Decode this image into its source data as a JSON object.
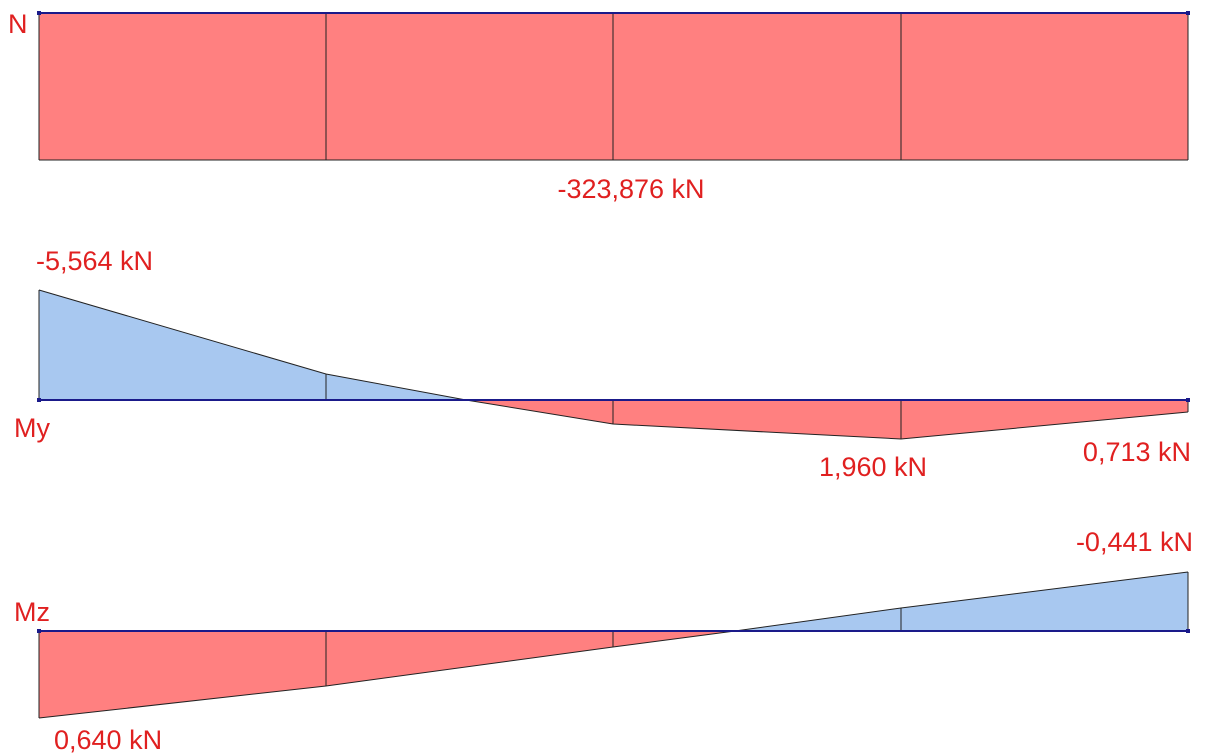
{
  "colors": {
    "negative_fill": "#ff8080",
    "positive_fill": "#a8c8f0",
    "axis": "#1a1a8a",
    "label": "#e02020"
  },
  "diagrams": {
    "N": {
      "name": "N",
      "value_label": "-323,876 kN",
      "values": [
        -323.876,
        -323.876,
        -323.876,
        -323.876,
        -323.876
      ]
    },
    "My": {
      "name": "My",
      "label_start": "-5,564 kN",
      "label_max": "1,960 kN",
      "label_end": "0,713 kN",
      "values": [
        -5.564,
        -1.3,
        0.6,
        1.96,
        0.713
      ]
    },
    "Mz": {
      "name": "Mz",
      "label_start": "0,640 kN",
      "label_end": "-0,441 kN",
      "values": [
        0.64,
        0.42,
        0.12,
        -0.17,
        -0.441
      ]
    }
  },
  "member": {
    "divisions": 4
  }
}
